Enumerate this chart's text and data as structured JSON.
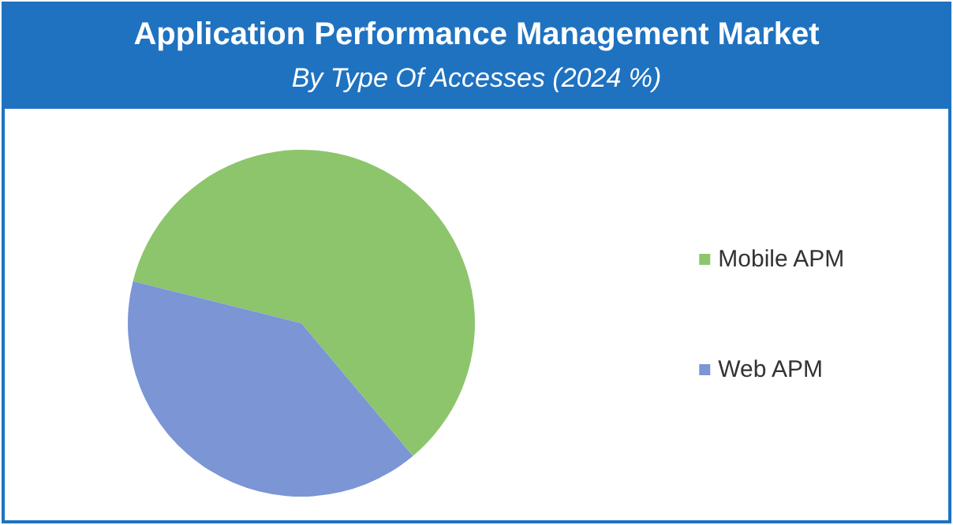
{
  "chart_data": {
    "type": "pie",
    "title": "Application Performance Management Market",
    "subtitle": "By Type Of Accesses (2024 %)",
    "categories": [
      "Mobile APM",
      "Web APM"
    ],
    "values": [
      60,
      40
    ],
    "colors": [
      "#8dc56c",
      "#7b95d5"
    ],
    "legend": "right"
  }
}
